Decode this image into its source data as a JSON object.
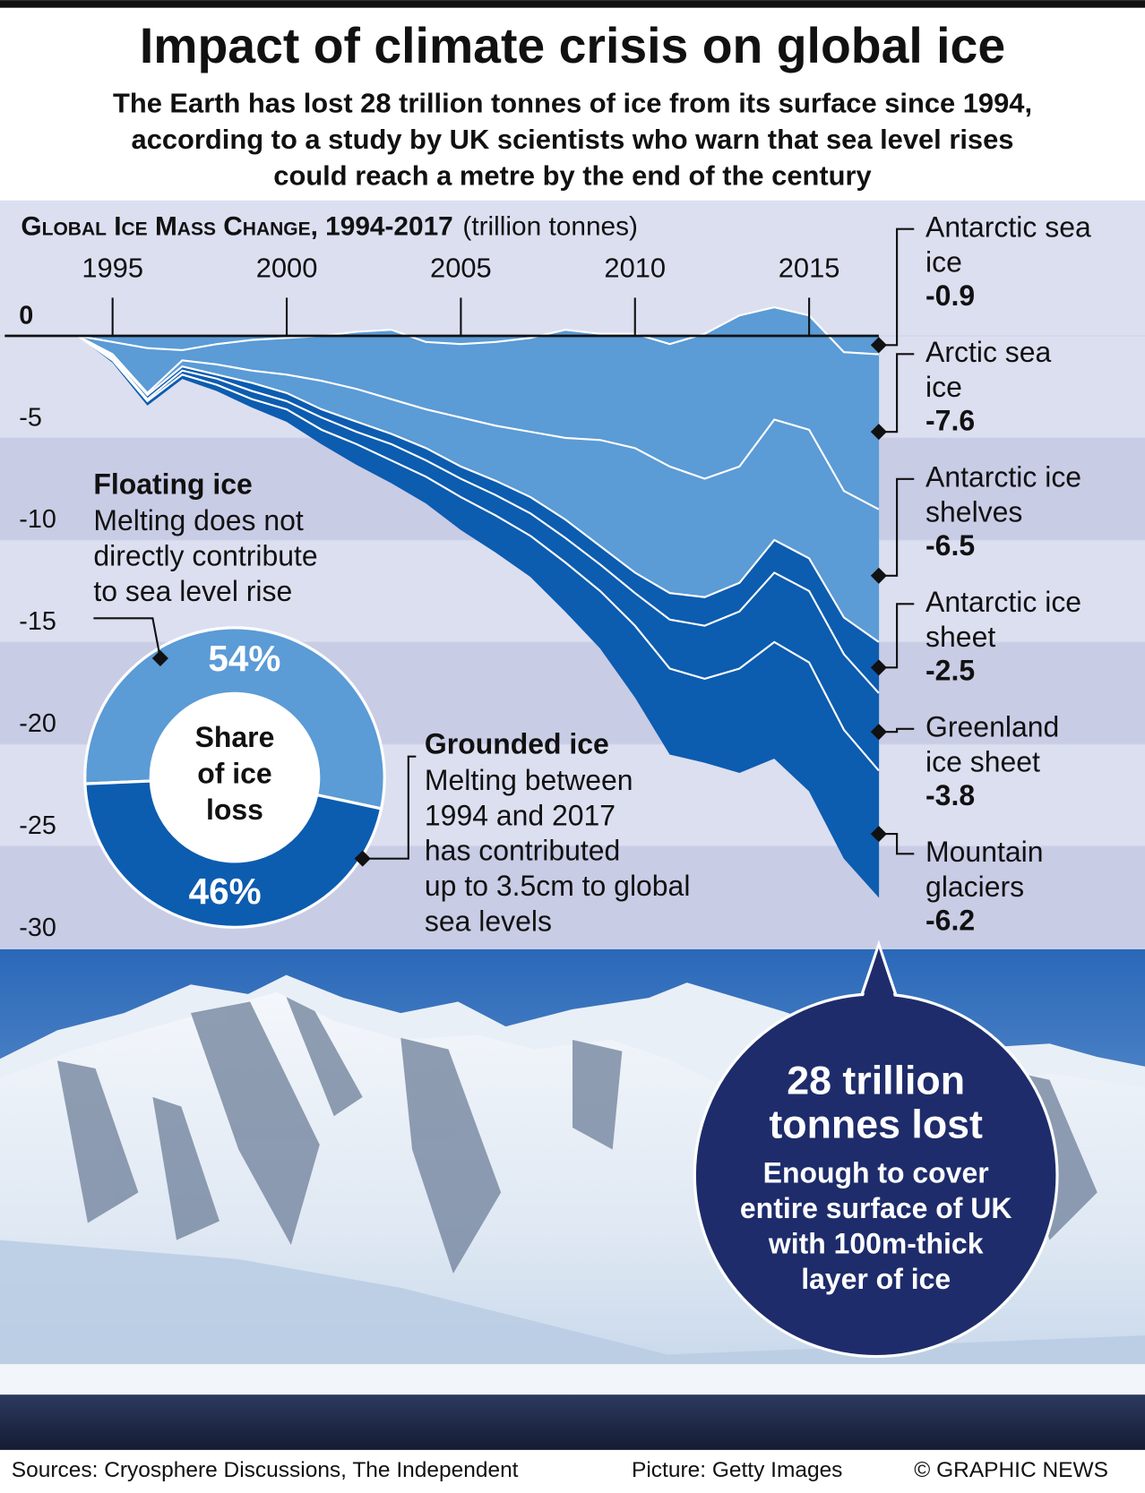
{
  "title": "Impact of climate crisis on global ice",
  "subtitle": [
    "The Earth has lost 28 trillion tonnes of ice from its surface since 1994,",
    "according to a study by UK scientists who warn that sea level rises",
    "could reach a metre by the end of the century"
  ],
  "chart_data": [
    {
      "type": "area",
      "title": "Global Ice Mass Change, 1994-2017",
      "unit": "(trillion tonnes)",
      "x": [
        1994,
        1995,
        1996,
        1997,
        1998,
        1999,
        2000,
        2001,
        2002,
        2003,
        2004,
        2005,
        2006,
        2007,
        2008,
        2009,
        2010,
        2011,
        2012,
        2013,
        2014,
        2015,
        2016,
        2017
      ],
      "xlim": [
        1994,
        2017
      ],
      "xticks": [
        1995,
        2000,
        2005,
        2010,
        2015
      ],
      "ylim": [
        -30,
        0
      ],
      "yticks": [
        0,
        -5,
        -10,
        -15,
        -20,
        -25,
        -30
      ],
      "series": [
        {
          "name": "Antarctic sea ice",
          "color": "#5b9bd6",
          "values": [
            0,
            -0.3,
            -0.6,
            -0.7,
            -0.4,
            -0.2,
            -0.1,
            0,
            0.2,
            0.3,
            -0.3,
            -0.4,
            -0.3,
            -0.1,
            0.3,
            0.1,
            0.1,
            -0.4,
            0.1,
            1.0,
            1.4,
            1.0,
            -0.8,
            -0.9
          ]
        },
        {
          "name": "Arctic sea ice",
          "color": "#5b9bd6",
          "values": [
            0,
            -0.6,
            -2.2,
            -0.5,
            -1.0,
            -1.5,
            -1.8,
            -2.2,
            -2.8,
            -3.4,
            -3.3,
            -3.6,
            -4.1,
            -4.6,
            -5.3,
            -5.2,
            -5.6,
            -6.0,
            -7.1,
            -7.4,
            -5.5,
            -5.6,
            -6.8,
            -7.6
          ]
        },
        {
          "name": "Antarctic ice shelves",
          "color": "#5b9bd6",
          "values": [
            0,
            -0.1,
            -0.1,
            -0.3,
            -0.5,
            -0.6,
            -0.9,
            -1.4,
            -1.6,
            -1.7,
            -1.9,
            -2.4,
            -2.7,
            -3.2,
            -4.0,
            -5.2,
            -6.1,
            -6.2,
            -5.8,
            -5.7,
            -5.9,
            -6.3,
            -6.2,
            -6.5
          ]
        },
        {
          "name": "Antarctic ice sheet",
          "color": "#0c5cb0",
          "values": [
            0,
            -0.1,
            -0.2,
            -0.2,
            -0.2,
            -0.4,
            -0.4,
            -0.4,
            -0.5,
            -0.5,
            -0.6,
            -0.6,
            -0.7,
            -0.8,
            -0.9,
            -0.9,
            -1.0,
            -1.3,
            -1.4,
            -1.4,
            -1.6,
            -1.6,
            -1.8,
            -2.5
          ]
        },
        {
          "name": "Greenland ice sheet",
          "color": "#0c5cb0",
          "values": [
            0,
            -0.1,
            -0.1,
            -0.2,
            -0.3,
            -0.4,
            -0.4,
            -0.6,
            -0.6,
            -0.8,
            -0.8,
            -0.9,
            -1.0,
            -1.1,
            -1.2,
            -1.3,
            -1.6,
            -2.4,
            -2.6,
            -2.8,
            -3.4,
            -3.5,
            -3.7,
            -3.8
          ]
        },
        {
          "name": "Mountain glaciers",
          "color": "#0c5cb0",
          "values": [
            0,
            -0.1,
            -0.2,
            -0.2,
            -0.3,
            -0.4,
            -0.6,
            -0.7,
            -1.0,
            -1.1,
            -1.3,
            -1.6,
            -1.8,
            -2.0,
            -2.4,
            -2.8,
            -3.5,
            -4.2,
            -4.1,
            -5.1,
            -5.7,
            -6.3,
            -6.3,
            -6.2
          ]
        }
      ]
    },
    {
      "type": "donut",
      "title": "Share of ice loss",
      "categories": [
        "Floating ice",
        "Grounded ice"
      ],
      "descriptions": [
        [
          "Melting does not",
          "directly contribute",
          "to sea level rise"
        ],
        [
          "Melting between",
          "1994 and 2017",
          "has contributed",
          "up to 3.5cm to global",
          "sea levels"
        ]
      ],
      "values": [
        54,
        46
      ],
      "value_labels": [
        "54%",
        "46%"
      ],
      "colors": [
        "#5b9bd6",
        "#0c5cb0"
      ]
    }
  ],
  "callout": {
    "headline": "28 trillion tonnes lost",
    "text": [
      "Enough to cover",
      "entire surface of UK",
      "with 100m-thick",
      "layer of ice"
    ]
  },
  "footer": {
    "sources": "Sources: Cryosphere Discussions, The Independent",
    "picture": "Picture: Getty Images",
    "credit": "© GRAPHIC NEWS"
  }
}
